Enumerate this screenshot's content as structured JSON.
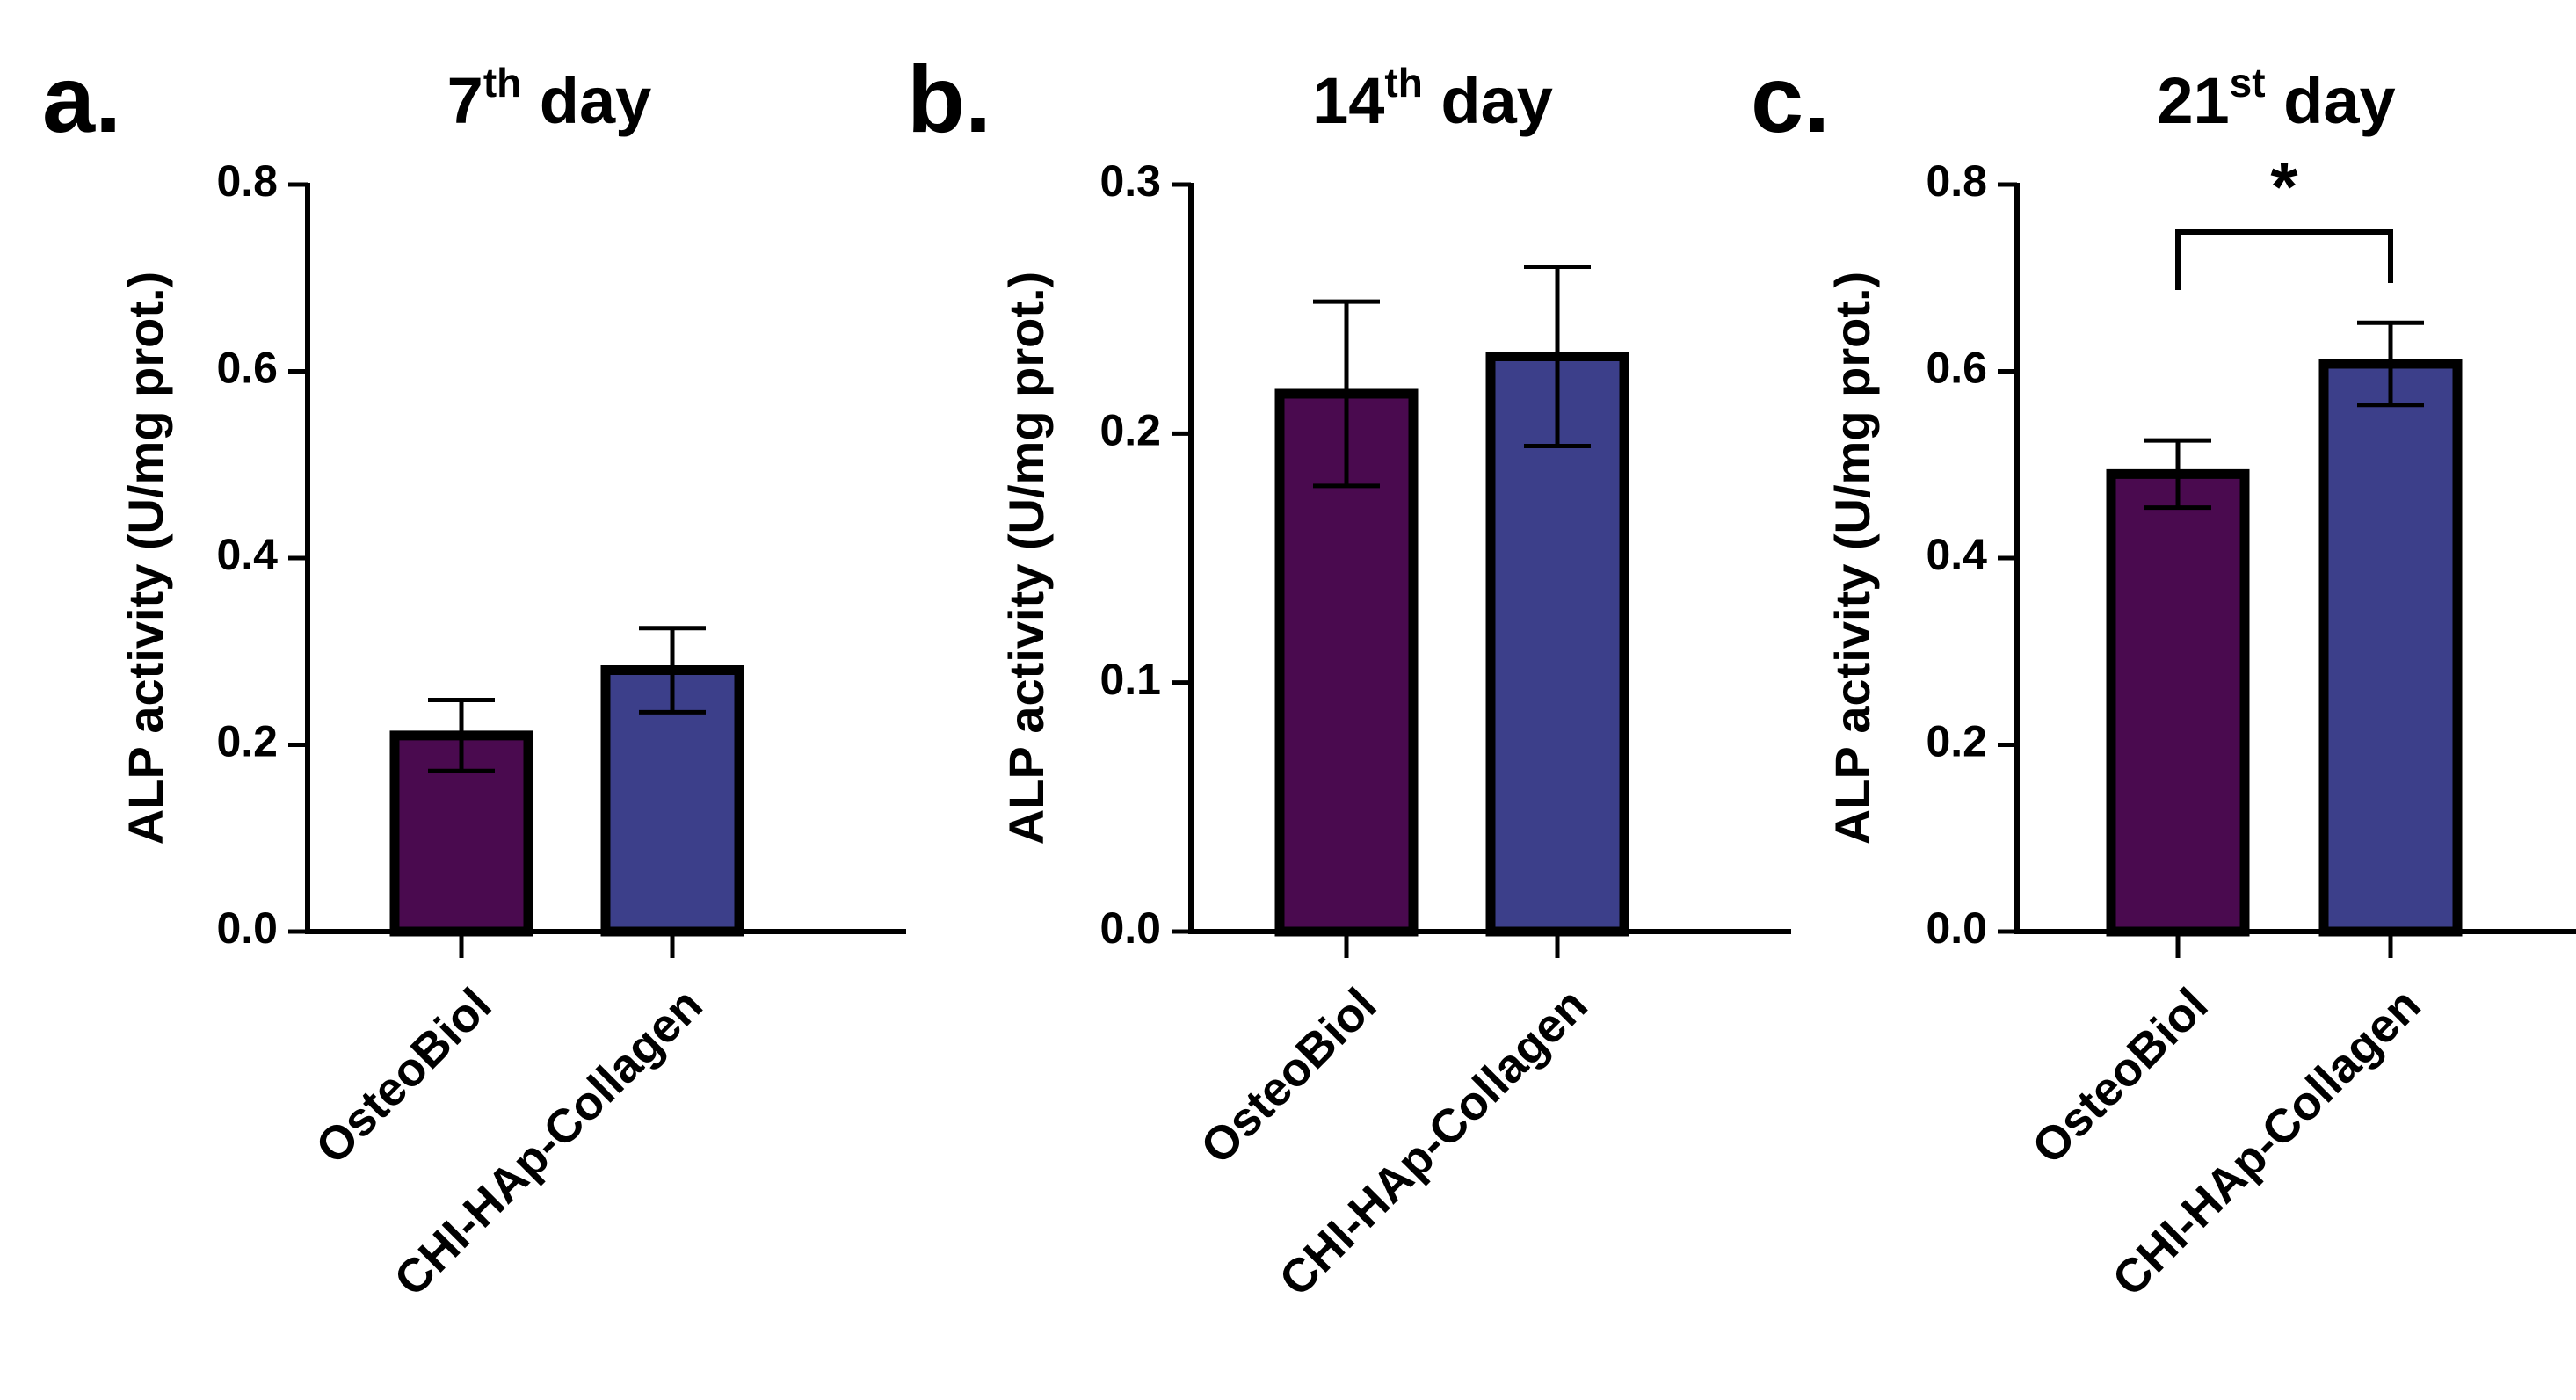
{
  "chart_data": [
    {
      "type": "bar",
      "panel": "a.",
      "title": "7",
      "title_sup": "th",
      "title_rest": " day",
      "ylabel": "ALP activity (U/mg prot.)",
      "xlabel": "",
      "categories": [
        "OsteoBiol",
        "CHI-HAp-Collagen"
      ],
      "values": [
        0.21,
        0.28
      ],
      "errors": [
        0.038,
        0.045
      ],
      "ylim": [
        0,
        0.8
      ],
      "yticks": [
        0.0,
        0.2,
        0.4,
        0.6,
        0.8
      ],
      "ytick_labels": [
        "0.0",
        "0.2",
        "0.4",
        "0.6",
        "0.8"
      ],
      "colors": [
        "#4a0a4f",
        "#3c3f8a"
      ],
      "significance": null
    },
    {
      "type": "bar",
      "panel": "b.",
      "title": "14",
      "title_sup": "th",
      "title_rest": " day",
      "ylabel": "ALP activity (U/mg prot.)",
      "xlabel": "",
      "categories": [
        "OsteoBiol",
        "CHI-HAp-Collagen"
      ],
      "values": [
        0.216,
        0.231
      ],
      "errors": [
        0.037,
        0.036
      ],
      "ylim": [
        0,
        0.3
      ],
      "yticks": [
        0.0,
        0.1,
        0.2,
        0.3
      ],
      "ytick_labels": [
        "0.0",
        "0.1",
        "0.2",
        "0.3"
      ],
      "colors": [
        "#4a0a4f",
        "#3c3f8a"
      ],
      "significance": null
    },
    {
      "type": "bar",
      "panel": "c.",
      "title": "21",
      "title_sup": "st",
      "title_rest": " day",
      "ylabel": "ALP activity (U/mg prot.)",
      "xlabel": "",
      "categories": [
        "OsteoBiol",
        "CHI-HAp-Collagen"
      ],
      "values": [
        0.49,
        0.608
      ],
      "errors": [
        0.036,
        0.044
      ],
      "ylim": [
        0,
        0.8
      ],
      "yticks": [
        0.0,
        0.2,
        0.4,
        0.6,
        0.8
      ],
      "ytick_labels": [
        "0.0",
        "0.2",
        "0.4",
        "0.6",
        "0.8"
      ],
      "colors": [
        "#4a0a4f",
        "#3c3f8a"
      ],
      "significance": {
        "label": "*",
        "between": [
          0,
          1
        ],
        "y": 0.75
      }
    }
  ]
}
